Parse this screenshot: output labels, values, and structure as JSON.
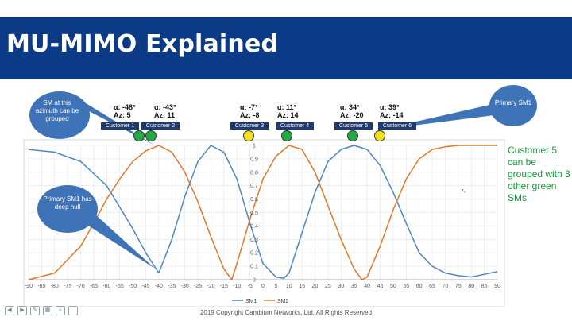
{
  "slide": {
    "title": "MU-MIMO Explained",
    "copyright": "2019 Copyright Cambium Networks, Ltd. All Rights Reserved",
    "note": "Customer 5 can be grouped with 3 other green SMs"
  },
  "callouts": [
    {
      "id": "azimuth",
      "text": "SM at this azimuth can be grouped"
    },
    {
      "id": "deepnull",
      "text": "Primary SM1 has deep null"
    },
    {
      "id": "primary",
      "text": "Primary SM1"
    }
  ],
  "customers": [
    {
      "label": "Customer 1",
      "angle": "",
      "az": "",
      "dot_color": "#22aa44"
    },
    {
      "label": "Customer 2",
      "angle": "α: -48°",
      "az": "Az: 5",
      "dot_color": "#22aa44"
    },
    {
      "label": "Customer 3",
      "angle": "α: -43°",
      "az": "Az: 11",
      "dot_color": "#f2e21a"
    },
    {
      "label": "Customer 4",
      "angle": "α: -7°",
      "az": "Az: -8",
      "dot_color": "#22aa44"
    },
    {
      "label": "Customer 5",
      "angle": "α: 11°",
      "az": "Az: 14",
      "dot_color": "#22aa44"
    },
    {
      "label": "Customer 6",
      "angle": "α: 34°",
      "az": "Az: -20",
      "dot_color": "#f2e21a"
    },
    {
      "label": "",
      "angle": "α: 39°",
      "az": "Az: -14",
      "dot_color": ""
    }
  ],
  "colors": {
    "sm1": "#4f86c0",
    "sm2": "#e07a2b",
    "title_bg": "#0b3a86",
    "callout": "#3f73b8",
    "customer_box": "#1f3a6e",
    "note": "#1a9a3a"
  },
  "chart_data": {
    "type": "line",
    "xlim": [
      -90,
      90
    ],
    "ylim": [
      0,
      1
    ],
    "x_ticks": [
      -90,
      -85,
      -80,
      -75,
      -70,
      -65,
      -60,
      -55,
      -50,
      -45,
      -40,
      -35,
      -30,
      -25,
      -20,
      -15,
      -10,
      -5,
      0,
      5,
      10,
      15,
      20,
      25,
      30,
      35,
      40,
      45,
      50,
      55,
      60,
      65,
      70,
      75,
      80,
      85,
      90
    ],
    "y_ticks": [
      0,
      0.1,
      0.2,
      0.3,
      0.4,
      0.5,
      0.6,
      0.7,
      0.8,
      0.9,
      1
    ],
    "legend_position": "bottom-center",
    "grid": true,
    "series": [
      {
        "name": "SM1",
        "x": [
          -90,
          -80,
          -70,
          -60,
          -50,
          -45,
          -40,
          -35,
          -30,
          -25,
          -20,
          -15,
          -10,
          -5,
          0,
          5,
          8,
          10,
          15,
          20,
          25,
          30,
          35,
          40,
          45,
          50,
          55,
          60,
          65,
          70,
          75,
          80,
          85,
          90
        ],
        "y": [
          0.97,
          0.95,
          0.88,
          0.7,
          0.38,
          0.2,
          0.05,
          0.3,
          0.62,
          0.88,
          1.0,
          0.95,
          0.75,
          0.42,
          0.12,
          0.02,
          0.01,
          0.05,
          0.35,
          0.65,
          0.88,
          0.97,
          1.0,
          0.97,
          0.85,
          0.65,
          0.42,
          0.2,
          0.1,
          0.05,
          0.03,
          0.02,
          0.04,
          0.06
        ]
      },
      {
        "name": "SM2",
        "x": [
          -90,
          -80,
          -70,
          -65,
          -60,
          -55,
          -50,
          -45,
          -40,
          -35,
          -30,
          -25,
          -20,
          -15,
          -12,
          -10,
          -5,
          0,
          5,
          10,
          15,
          20,
          25,
          30,
          35,
          38,
          40,
          45,
          50,
          55,
          60,
          65,
          70,
          75,
          80,
          85,
          90
        ],
        "y": [
          0.0,
          0.05,
          0.25,
          0.42,
          0.6,
          0.75,
          0.88,
          0.96,
          1.0,
          0.95,
          0.8,
          0.58,
          0.32,
          0.08,
          0.0,
          0.12,
          0.45,
          0.75,
          0.92,
          1.0,
          0.97,
          0.8,
          0.55,
          0.3,
          0.08,
          0.0,
          0.02,
          0.25,
          0.52,
          0.75,
          0.9,
          0.97,
          0.99,
          1.0,
          1.0,
          1.0,
          1.0
        ]
      }
    ]
  }
}
